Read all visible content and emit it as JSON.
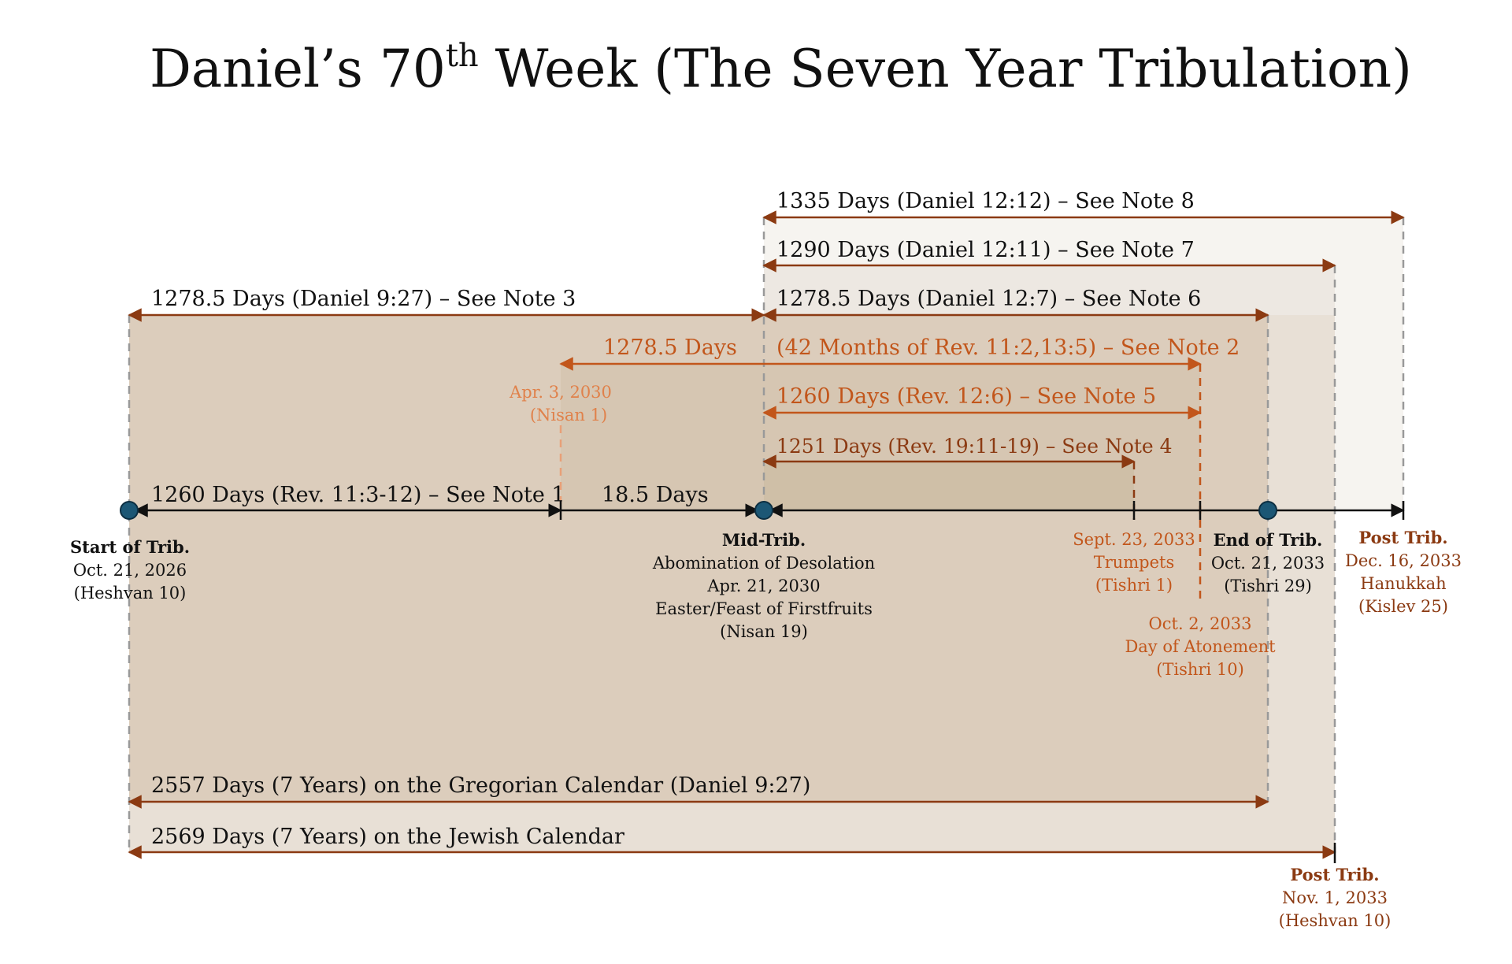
{
  "colors": {
    "dark": "#111111",
    "brown": "#8b3a12",
    "orange": "#c2561b",
    "light_orange": "#e8a078",
    "node": "#1c5775",
    "gray_dash": "#999999",
    "band_outer": "#e8e0d6",
    "band_mid": "#dccdbc",
    "band_inner": "#d2c1aa",
    "band_right1": "#f6f4f0",
    "band_right2": "#ede8e2"
  },
  "title": {
    "prefix": "Daniel’s 70",
    "superscript": "th",
    "suffix": " Week (The Seven Year Tribulation)"
  },
  "spans": {
    "s1335": "1335 Days (Daniel 12:12) – See Note 8",
    "s1290": "1290 Days (Daniel 12:11) – See Note 7",
    "s1278_first": "1278.5 Days (Daniel 9:27) – See Note 3",
    "s1278_second": "1278.5 Days (Daniel 12:7) – See Note 6",
    "s1278_orange": "1278.5 Days",
    "s42_months": "(42 Months of Rev. 11:2,13:5) – See Note 2",
    "s1260_rev12": "1260 Days (Rev. 12:6) – See Note 5",
    "s1251": "1251 Days (Rev. 19:11-19) – See Note 4",
    "s1260_rev11": "1260 Days (Rev. 11:3-12) – See Note 1",
    "s18_5": "18.5 Days",
    "s2557": "2557 Days (7 Years) on the Gregorian Calendar (Daniel 9:27)",
    "s2569": "2569 Days (7 Years) on the Jewish Calendar"
  },
  "markers": {
    "start": {
      "title": "Start of Trib.",
      "date": "Oct. 21, 2026",
      "hebrew": "(Heshvan 10)"
    },
    "mid": {
      "title": "Mid-Trib.",
      "event": "Abomination of Desolation",
      "date": "Apr. 21, 2030",
      "feast": "Easter/Feast of Firstfruits",
      "hebrew": "(Nisan 19)"
    },
    "nisan1": {
      "date": "Apr. 3, 2030",
      "hebrew": "(Nisan 1)"
    },
    "trumpets": {
      "date": "Sept. 23, 2033",
      "feast": "Trumpets",
      "hebrew": "(Tishri 1)"
    },
    "atonement": {
      "date": "Oct. 2, 2033",
      "feast": "Day of Atonement",
      "hebrew": "(Tishri 10)"
    },
    "end": {
      "title": "End of Trib.",
      "date": "Oct. 21, 2033",
      "hebrew": "(Tishri 29)"
    },
    "post_hanukkah": {
      "title": "Post Trib.",
      "date": "Dec. 16, 2033",
      "feast": "Hanukkah",
      "hebrew": "(Kislev 25)"
    },
    "post_heshvan": {
      "title": "Post Trib.",
      "date": "Nov. 1, 2033",
      "hebrew": "(Heshvan 10)"
    }
  }
}
